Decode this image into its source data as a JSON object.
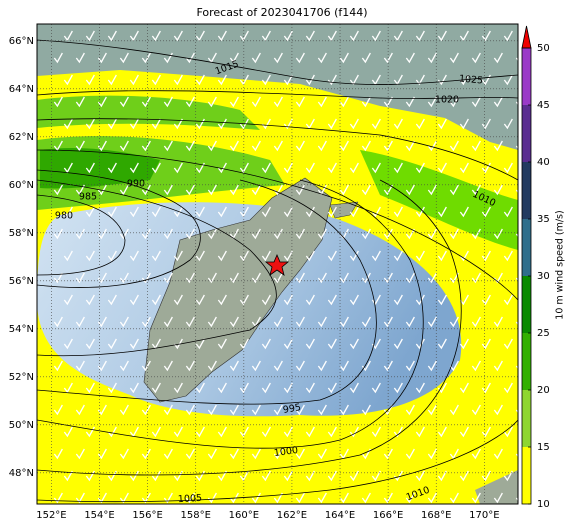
{
  "map": {
    "title": "Forecast of 2023041706 (f144)",
    "xlim": [
      151.4,
      171.4
    ],
    "ylim": [
      46.7,
      66.7
    ],
    "xticks": [
      {
        "value": 152,
        "label": "152°E"
      },
      {
        "value": 154,
        "label": "154°E"
      },
      {
        "value": 156,
        "label": "156°E"
      },
      {
        "value": 158,
        "label": "158°E"
      },
      {
        "value": 160,
        "label": "160°E"
      },
      {
        "value": 162,
        "label": "162°E"
      },
      {
        "value": 164,
        "label": "164°E"
      },
      {
        "value": 166,
        "label": "166°E"
      },
      {
        "value": 168,
        "label": "168°E"
      },
      {
        "value": 170,
        "label": "170°E"
      }
    ],
    "yticks": [
      {
        "value": 48,
        "label": "48°N"
      },
      {
        "value": 50,
        "label": "50°N"
      },
      {
        "value": 52,
        "label": "52°N"
      },
      {
        "value": 54,
        "label": "54°N"
      },
      {
        "value": 56,
        "label": "56°N"
      },
      {
        "value": 58,
        "label": "58°N"
      },
      {
        "value": 60,
        "label": "60°N"
      },
      {
        "value": 62,
        "label": "62°N"
      },
      {
        "value": 64,
        "label": "64°N"
      },
      {
        "value": 66,
        "label": "66°N"
      }
    ],
    "contour_labels": [
      "1015",
      "1025",
      "1020",
      "990",
      "985",
      "980",
      "1010",
      "995",
      "1000",
      "1005",
      "1010"
    ],
    "colorbar": {
      "label": "10 m wind speed (m/s)",
      "ticks": [
        10,
        15,
        20,
        25,
        30,
        35,
        40,
        45,
        50
      ],
      "colors": [
        "#ffff00",
        "#8fd630",
        "#33b000",
        "#0a8a00",
        "#2f6e8c",
        "#223a60",
        "#5a2d91",
        "#9a3ac8"
      ],
      "extend_color": "#ee0000"
    }
  }
}
